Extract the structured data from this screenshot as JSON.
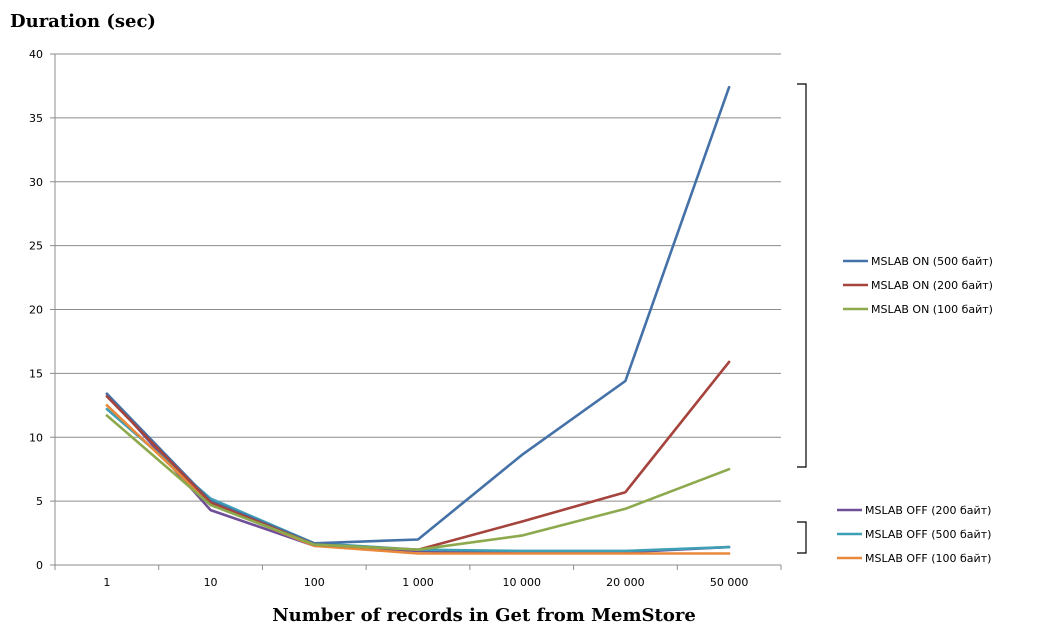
{
  "chart_data": {
    "type": "line",
    "ylabel": "Duration (sec)",
    "xlabel": "Number of records in Get   from MemStore",
    "categories": [
      "1",
      "10",
      "100",
      "1 000",
      "10 000",
      "20 000",
      "50 000"
    ],
    "ylim": [
      0,
      40
    ],
    "yticks": [
      0,
      5,
      10,
      15,
      20,
      25,
      30,
      35,
      40
    ],
    "grid": true,
    "legend_position": "right",
    "series": [
      {
        "name": "MSLAB  ON (500 байт)",
        "color": "#4472a8",
        "group": "on",
        "values": [
          13.4,
          5.0,
          1.7,
          2.0,
          8.6,
          14.4,
          37.4
        ]
      },
      {
        "name": "MSLAB  ON (200 байт)",
        "color": "#a5433d",
        "group": "on",
        "values": [
          13.2,
          4.9,
          1.6,
          1.2,
          3.4,
          5.7,
          15.9
        ]
      },
      {
        "name": "MSLAB  ON (100 байт)",
        "color": "#8ca94d",
        "group": "on",
        "values": [
          11.7,
          4.7,
          1.6,
          1.2,
          2.3,
          4.4,
          7.5
        ]
      },
      {
        "name": "MSLAB  OFF (200 байт)",
        "color": "#6f4f97",
        "group": "off",
        "values": [
          13.4,
          4.3,
          1.5,
          1.1,
          1.0,
          1.0,
          1.4
        ]
      },
      {
        "name": "MSLAB  OFF (500 байт)",
        "color": "#3e9fb5",
        "group": "off",
        "values": [
          12.2,
          5.2,
          1.7,
          1.2,
          1.1,
          1.1,
          1.4
        ]
      },
      {
        "name": "MSLAB  OFF (100 байт)",
        "color": "#e9883a",
        "group": "off",
        "values": [
          12.5,
          4.8,
          1.5,
          0.9,
          0.9,
          0.9,
          0.9
        ]
      }
    ]
  }
}
